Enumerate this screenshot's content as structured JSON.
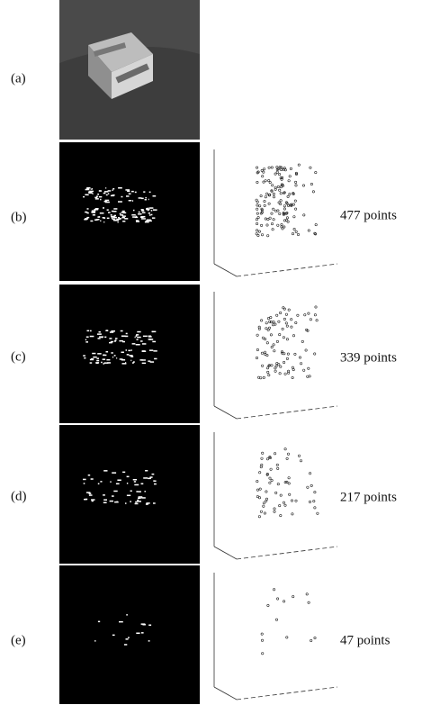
{
  "rows": [
    {
      "label": "(a)"
    },
    {
      "label": "(b)",
      "caption": "477 points"
    },
    {
      "label": "(c)",
      "caption": "339 points"
    },
    {
      "label": "(d)",
      "caption": "217 points"
    },
    {
      "label": "(e)",
      "caption": "47 points"
    }
  ]
}
